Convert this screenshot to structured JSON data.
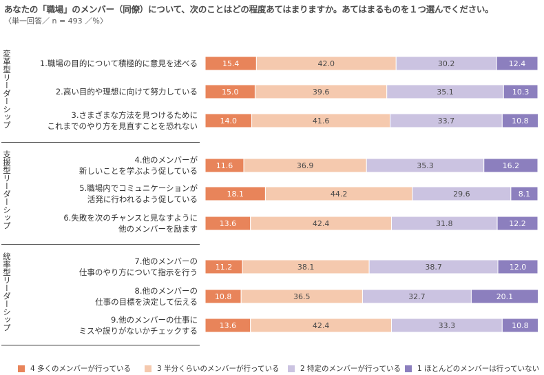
{
  "title": "あなたの「職場」のメンバー（同僚）について、次のことはどの程度あてはまりますか。あてはまるものを１つ選んでください。",
  "subtitle": "〈単一回答／ n = 493 ／％〉",
  "colors": {
    "s4": "#e8845a",
    "s3": "#f5c9ae",
    "s2": "#cbc3e1",
    "s1": "#8c7fbe"
  },
  "chart_data": {
    "type": "bar",
    "stacked": true,
    "orientation": "horizontal",
    "xlim": [
      0,
      100
    ],
    "groups": [
      {
        "label": "変革型リーダーシップ",
        "items": [
          0,
          1,
          2
        ]
      },
      {
        "label": "支援型リーダーシップ",
        "items": [
          3,
          4,
          5
        ]
      },
      {
        "label": "統率型リーダーシップ",
        "items": [
          6,
          7,
          8
        ]
      }
    ],
    "categories": [
      [
        "1.職場の目的について積極的に意見を述べる"
      ],
      [
        "2.高い目的や理想に向けて努力している"
      ],
      [
        "3.さまざまな方法を見つけるために",
        "これまでのやり方を見直すことを恐れない"
      ],
      [
        "4.他のメンバーが",
        "新しいことを学ぶよう促している"
      ],
      [
        "5.職場内でコミュニケーションが",
        "活発に行われるよう促している"
      ],
      [
        "6.失敗を次のチャンスと見なすように",
        "他のメンバーを励ます"
      ],
      [
        "7.他のメンバーの",
        "仕事のやり方について指示を行う"
      ],
      [
        "8.他のメンバーの",
        "仕事の目標を決定して伝える"
      ],
      [
        "9.他のメンバーの仕事に",
        "ミスや誤りがないかチェックする"
      ]
    ],
    "series": [
      {
        "name": "4 多くのメンバーが行っている",
        "values": [
          15.4,
          15.0,
          14.0,
          11.6,
          18.1,
          13.6,
          11.2,
          10.8,
          13.6
        ]
      },
      {
        "name": "3 半分くらいのメンバーが行っている",
        "values": [
          42.0,
          39.6,
          41.6,
          36.9,
          44.2,
          42.4,
          38.1,
          36.5,
          42.4
        ]
      },
      {
        "name": "2 特定のメンバーが行っている",
        "values": [
          30.2,
          35.1,
          33.7,
          35.3,
          29.6,
          31.8,
          38.7,
          32.7,
          33.3
        ]
      },
      {
        "name": "1 ほとんどのメンバーは行っていない",
        "values": [
          12.4,
          10.3,
          10.8,
          16.2,
          8.1,
          12.2,
          12.0,
          20.1,
          10.8
        ]
      }
    ]
  }
}
